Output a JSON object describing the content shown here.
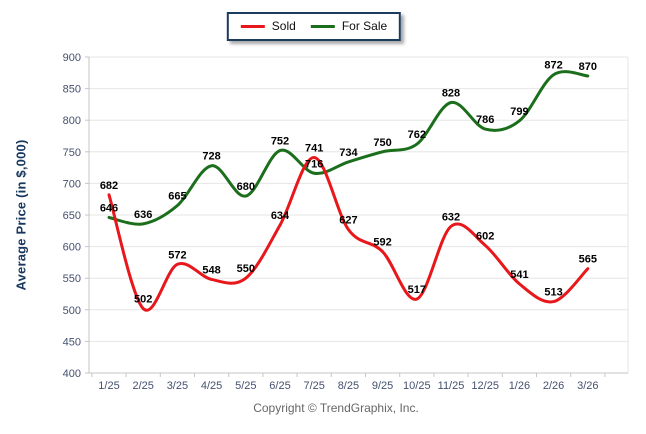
{
  "chart_data": {
    "type": "line",
    "title": "",
    "categories": [
      "1/25",
      "2/25",
      "3/25",
      "4/25",
      "5/25",
      "6/25",
      "7/25",
      "8/25",
      "9/25",
      "10/25",
      "11/25",
      "12/25",
      "1/26",
      "2/26",
      "3/26"
    ],
    "series": [
      {
        "name": "Sold",
        "color": "#e8171b",
        "values": [
          682,
          502,
          572,
          548,
          550,
          634,
          741,
          627,
          592,
          517,
          632,
          602,
          541,
          513,
          565
        ]
      },
      {
        "name": "For Sale",
        "color": "#1b6e1b",
        "values": [
          646,
          636,
          665,
          728,
          680,
          752,
          716,
          734,
          750,
          762,
          828,
          786,
          799,
          872,
          870
        ]
      }
    ],
    "xlabel": "",
    "ylabel": "Average Price (in $,000)",
    "ylim": [
      400,
      900
    ],
    "ytick_step": 50,
    "grid": true,
    "legend_position": "top-center",
    "footer": "Copyright © TrendGraphix, Inc.",
    "colors": {
      "grid": "#e6e6e6",
      "axis": "#c6c6c6",
      "tick_label": "#44506e",
      "data_label": "#000000",
      "axis_label": "#17375e",
      "footer_text": "#666666",
      "legend_border": "#1c3c5e",
      "background": "#ffffff"
    }
  }
}
